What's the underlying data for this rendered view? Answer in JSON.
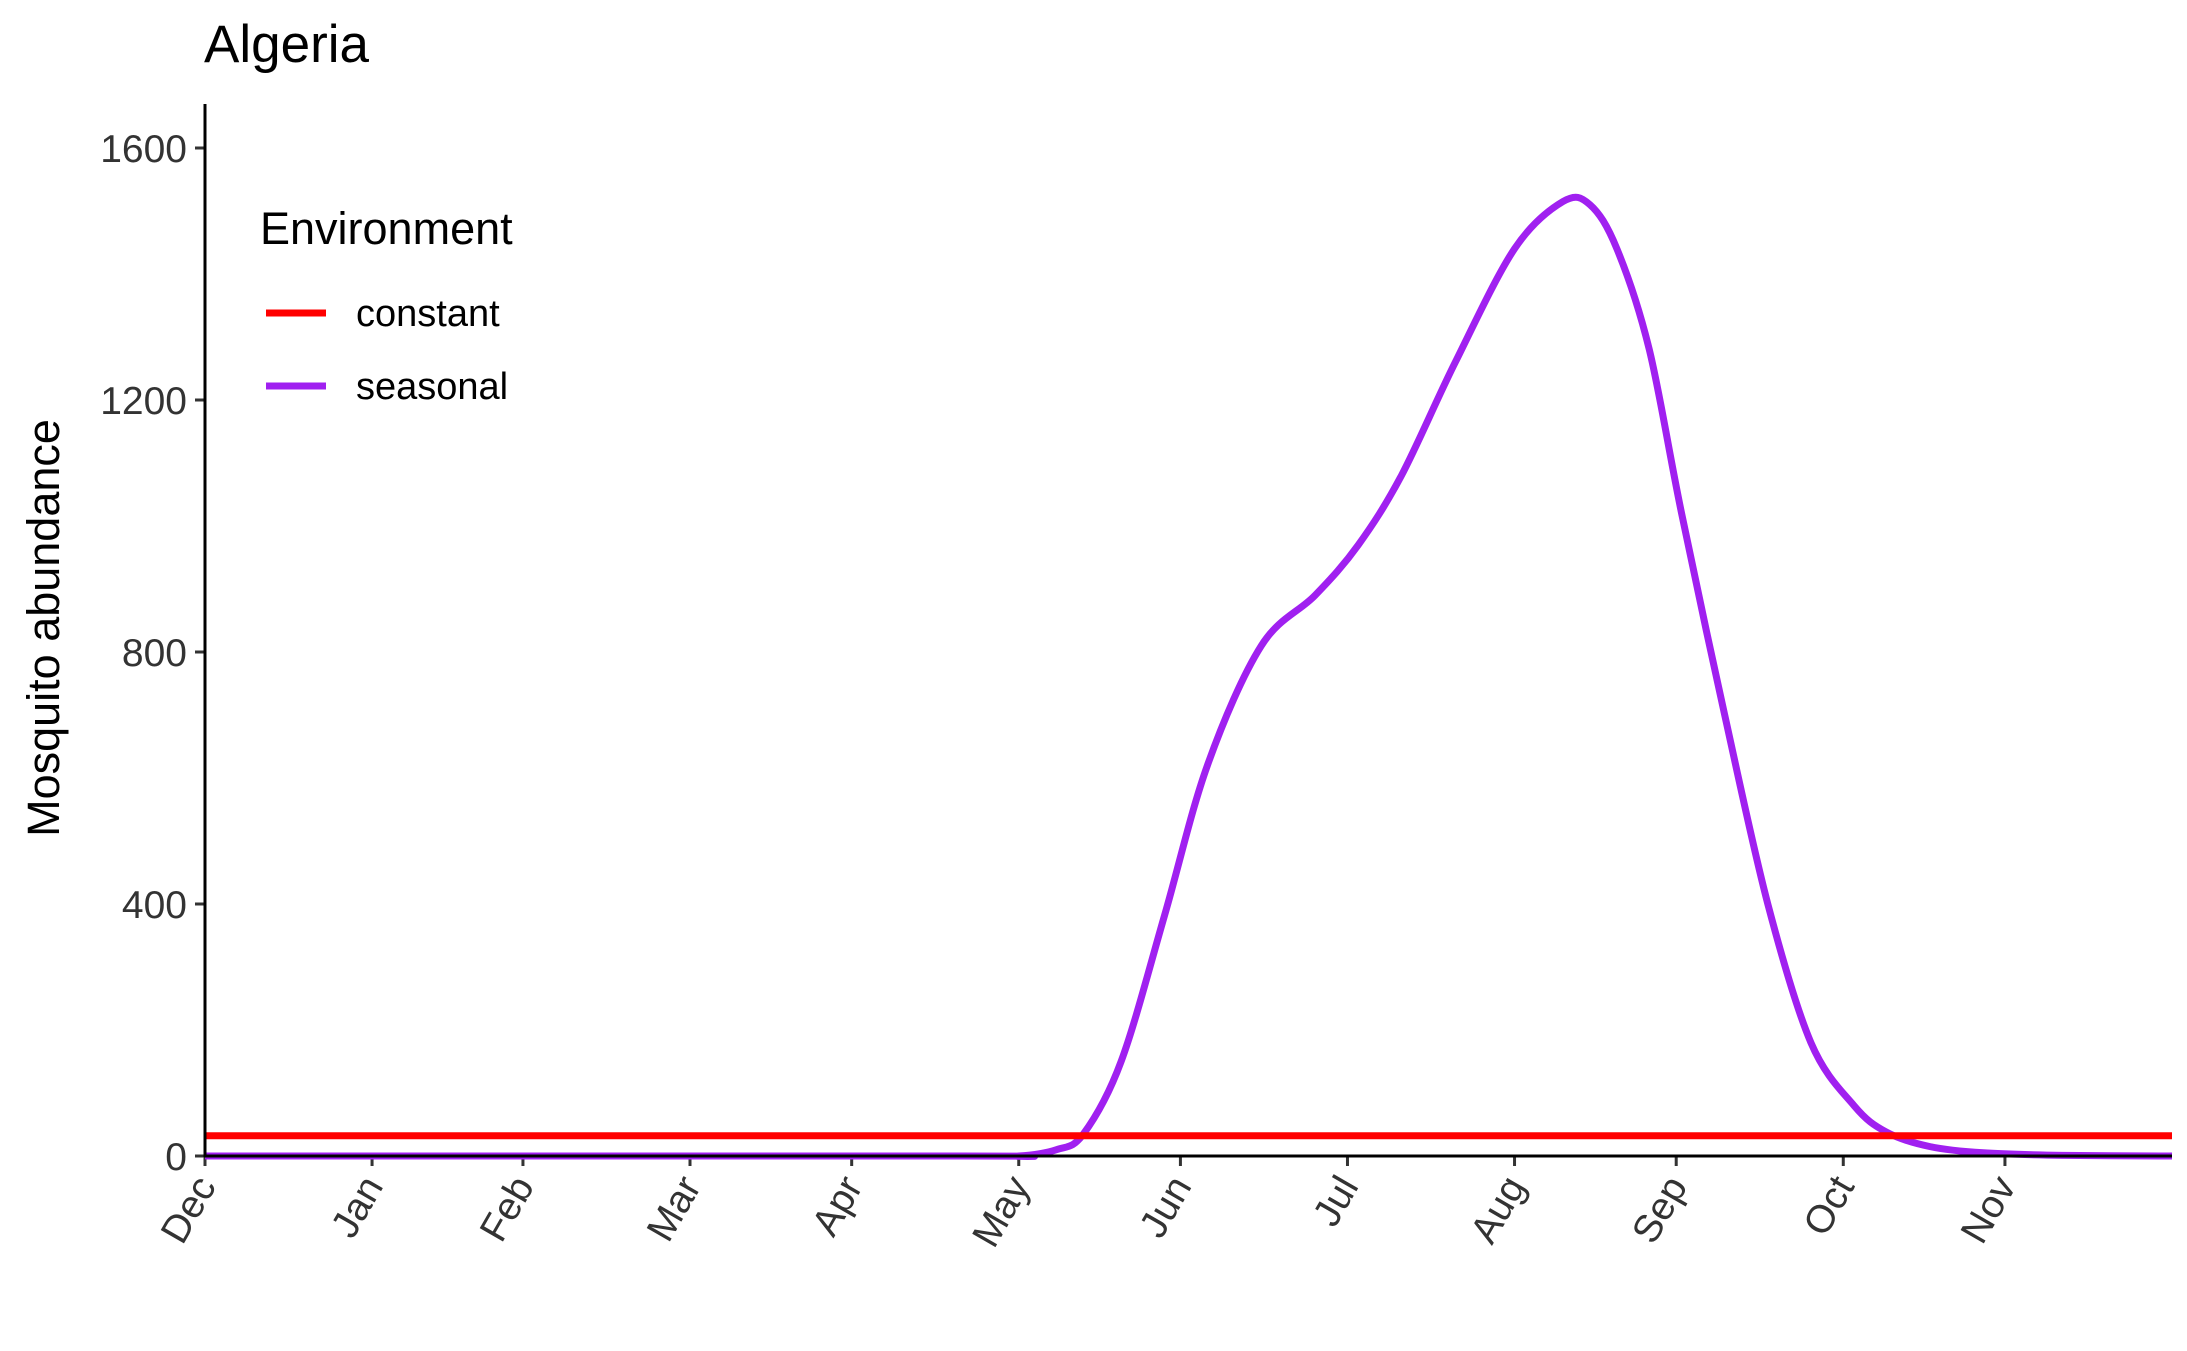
{
  "chart_data": {
    "type": "line",
    "title": "Algeria",
    "xlabel": "",
    "ylabel": "Mosquito abundance",
    "ylim": [
      0,
      1600
    ],
    "yticks": [
      0,
      400,
      800,
      1200,
      1600
    ],
    "xticks": [
      "Dec",
      "Jan",
      "Feb",
      "Mar",
      "Apr",
      "May",
      "Jun",
      "Jul",
      "Aug",
      "Sep",
      "Oct",
      "Nov"
    ],
    "xtick_days": [
      0,
      31,
      59,
      90,
      120,
      151,
      181,
      212,
      243,
      273,
      304,
      334
    ],
    "xlim_days": [
      0,
      365
    ],
    "grid": false,
    "legend": {
      "title": "Environment",
      "position": "top-left",
      "entries": [
        "constant",
        "seasonal"
      ]
    },
    "series": [
      {
        "name": "constant",
        "color": "#ff0000",
        "x": [
          0,
          365
        ],
        "y": [
          32,
          32
        ]
      },
      {
        "name": "seasonal",
        "color": "#a020f0",
        "x": [
          0,
          140,
          151,
          158,
          163,
          170,
          178,
          186,
          196,
          206,
          214,
          222,
          232,
          243,
          252,
          257,
          262,
          268,
          274,
          282,
          290,
          298,
          306,
          312,
          320,
          330,
          345,
          365
        ],
        "y": [
          0,
          0,
          0,
          10,
          35,
          150,
          380,
          620,
          810,
          890,
          970,
          1080,
          1260,
          1440,
          1515,
          1510,
          1440,
          1280,
          1020,
          700,
          400,
          180,
          80,
          38,
          15,
          5,
          1,
          0
        ]
      }
    ]
  }
}
